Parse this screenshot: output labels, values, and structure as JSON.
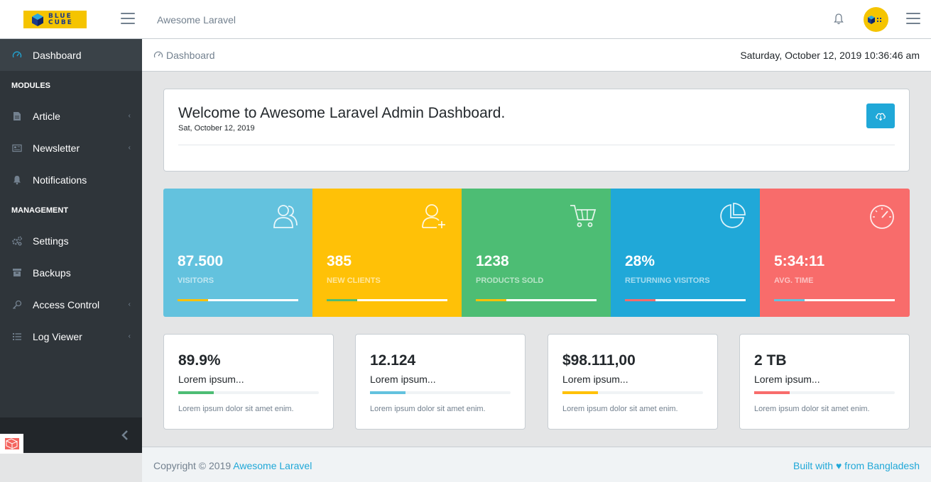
{
  "header": {
    "logo_top": "BLUE",
    "logo_bottom": "CUBE",
    "title": "Awesome Laravel",
    "bell_icon": "bell-icon",
    "avatar_icon": "blue-cube-avatar"
  },
  "sidebar": {
    "items": [
      {
        "type": "item",
        "label": "Dashboard",
        "icon": "speedometer-icon",
        "active": true,
        "caret": false
      },
      {
        "type": "title",
        "label": "MODULES"
      },
      {
        "type": "item",
        "label": "Article",
        "icon": "document-icon",
        "caret": true
      },
      {
        "type": "item",
        "label": "Newsletter",
        "icon": "newspaper-icon",
        "caret": true
      },
      {
        "type": "item",
        "label": "Notifications",
        "icon": "bell-icon",
        "caret": false
      },
      {
        "type": "title",
        "label": "MANAGEMENT"
      },
      {
        "type": "item",
        "label": "Settings",
        "icon": "gears-icon",
        "caret": false
      },
      {
        "type": "item",
        "label": "Backups",
        "icon": "archive-icon",
        "caret": false
      },
      {
        "type": "item",
        "label": "Access Control",
        "icon": "key-icon",
        "caret": true
      },
      {
        "type": "item",
        "label": "Log Viewer",
        "icon": "list-icon",
        "caret": true
      }
    ]
  },
  "breadcrumb": {
    "item": "Dashboard",
    "datetime": "Saturday, October 12, 2019 10:36:46 am"
  },
  "welcome": {
    "title": "Welcome to Awesome Laravel Admin Dashboard.",
    "subtitle": "Sat, October 12, 2019"
  },
  "tiles": [
    {
      "value": "87.500",
      "label": "Visitors",
      "color": "#63c2de",
      "bar_color": "#ffc107",
      "progress": 25,
      "icon": "users-icon"
    },
    {
      "value": "385",
      "label": "New Clients",
      "color": "#ffc107",
      "bar_color": "#4dbd74",
      "progress": 25,
      "icon": "user-add-icon"
    },
    {
      "value": "1238",
      "label": "Products sold",
      "color": "#4dbd74",
      "bar_color": "#ffc107",
      "progress": 25,
      "icon": "cart-icon"
    },
    {
      "value": "28%",
      "label": "Returning Visitors",
      "color": "#20a8d8",
      "bar_color": "#f86c6b",
      "progress": 25,
      "icon": "pie-chart-icon"
    },
    {
      "value": "5:34:11",
      "label": "Avg. Time",
      "color": "#f86c6b",
      "bar_color": "#63c2de",
      "progress": 25,
      "icon": "speedometer-icon"
    }
  ],
  "cards": [
    {
      "value": "89.9%",
      "label": "Lorem ipsum...",
      "bar_color": "#4dbd74",
      "progress": 25,
      "note": "Lorem ipsum dolor sit amet enim."
    },
    {
      "value": "12.124",
      "label": "Lorem ipsum...",
      "bar_color": "#63c2de",
      "progress": 25,
      "note": "Lorem ipsum dolor sit amet enim."
    },
    {
      "value": "$98.111,00",
      "label": "Lorem ipsum...",
      "bar_color": "#ffc107",
      "progress": 25,
      "note": "Lorem ipsum dolor sit amet enim."
    },
    {
      "value": "2 TB",
      "label": "Lorem ipsum...",
      "bar_color": "#f86c6b",
      "progress": 25,
      "note": "Lorem ipsum dolor sit amet enim."
    }
  ],
  "footer": {
    "copyright": "Copyright © 2019",
    "brand": "Awesome Laravel",
    "built_with": "Built with ♥ from Bangladesh"
  }
}
